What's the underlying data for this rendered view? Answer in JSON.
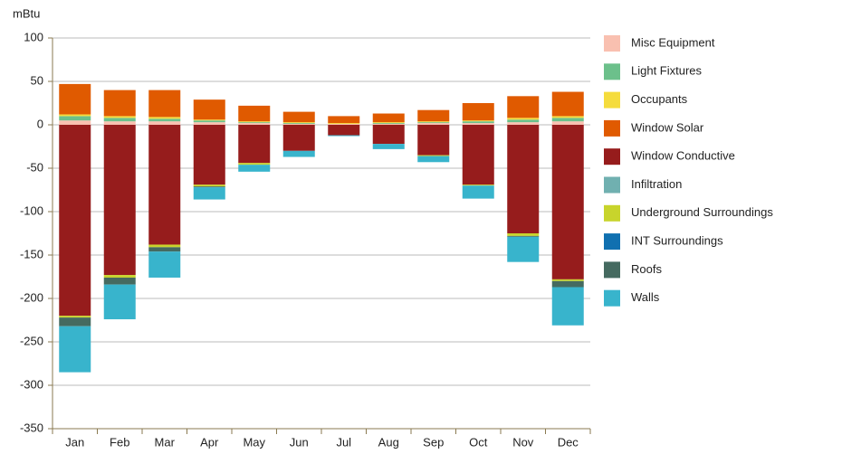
{
  "chart_data": {
    "type": "stacked_bar",
    "y_label": "mBtu",
    "categories": [
      "Jan",
      "Feb",
      "Mar",
      "Apr",
      "May",
      "Jun",
      "Jul",
      "Aug",
      "Sep",
      "Oct",
      "Nov",
      "Dec"
    ],
    "ylim": [
      -350,
      100
    ],
    "yticks": [
      100,
      50,
      0,
      -50,
      -100,
      -150,
      -200,
      -250,
      -300,
      -350
    ],
    "grid": true,
    "series": [
      {
        "name": "Misc Equipment",
        "color": "#f9c0b0",
        "values": [
          5,
          4,
          4,
          3,
          2,
          1,
          1,
          1,
          2,
          2,
          3,
          4
        ]
      },
      {
        "name": "Light Fixtures",
        "color": "#6cc08b",
        "values": [
          5,
          4,
          3,
          2,
          1,
          1,
          0,
          1,
          1,
          2,
          3,
          4
        ]
      },
      {
        "name": "Occupants",
        "color": "#f5dc3c",
        "values": [
          2,
          2,
          2,
          1,
          1,
          1,
          1,
          1,
          1,
          1,
          2,
          2
        ]
      },
      {
        "name": "Window Solar",
        "color": "#e05a00",
        "values": [
          35,
          30,
          31,
          23,
          18,
          12,
          8,
          10,
          13,
          20,
          25,
          28
        ]
      },
      {
        "name": "Window Conductive",
        "color": "#961c1c",
        "values": [
          -220,
          -173,
          -138,
          -69,
          -44,
          -30,
          -12,
          -22,
          -35,
          -69,
          -125,
          -178
        ]
      },
      {
        "name": "Infiltration",
        "color": "#70b0b0",
        "values": [
          0,
          0,
          0,
          0,
          0,
          0,
          0,
          0,
          0,
          0,
          0,
          0
        ]
      },
      {
        "name": "Underground Surroundings",
        "color": "#c8d42c",
        "values": [
          -2,
          -3,
          -3,
          -2,
          -2,
          0,
          0,
          0,
          -1,
          -1,
          -3,
          -2
        ]
      },
      {
        "name": "INT Surroundings",
        "color": "#1070b0",
        "values": [
          0,
          0,
          0,
          0,
          0,
          0,
          0,
          0,
          0,
          0,
          0,
          0
        ]
      },
      {
        "name": "Roofs",
        "color": "#456a60",
        "values": [
          -10,
          -8,
          -5,
          -1,
          0,
          0,
          0,
          0,
          0,
          0,
          -1,
          -7
        ]
      },
      {
        "name": "Walls",
        "color": "#38b4cc",
        "values": [
          -53,
          -40,
          -30,
          -14,
          -8,
          -7,
          -1,
          -6,
          -7,
          -15,
          -29,
          -44
        ]
      }
    ]
  }
}
